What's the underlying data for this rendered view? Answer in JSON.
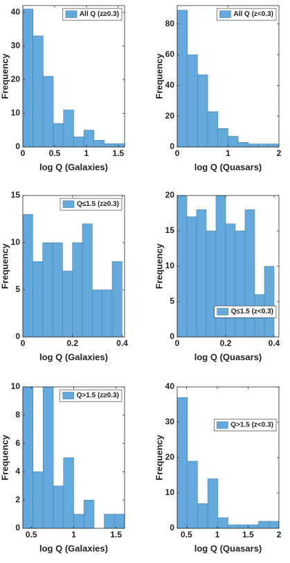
{
  "chart_data": [
    {
      "type": "histogram",
      "xlabel": "log Q (Galaxies)",
      "ylabel": "Frequency",
      "bins": [
        0,
        0.16,
        0.32,
        0.48,
        0.64,
        0.8,
        0.96,
        1.12,
        1.28,
        1.44,
        1.6
      ],
      "series": [
        {
          "name": "All Q (z≥0.3)",
          "color": "#64a9dc",
          "values": [
            41,
            33,
            21,
            7,
            11,
            3,
            5,
            2,
            1,
            1
          ]
        }
      ],
      "xlim": [
        0,
        1.6
      ],
      "xticks": [
        0,
        0.5,
        1,
        1.5
      ],
      "ylim": [
        0,
        42
      ],
      "yticks": [
        0,
        10,
        20,
        30,
        40
      ],
      "legend": "upper right"
    },
    {
      "type": "histogram",
      "xlabel": "log Q (Quasars)",
      "ylabel": "Frequency",
      "bins": [
        0,
        0.2,
        0.4,
        0.6,
        0.8,
        1,
        1.2,
        1.4,
        1.6,
        1.8,
        2
      ],
      "series": [
        {
          "name": "All Q (z<0.3)",
          "color": "#64a9dc",
          "values": [
            89,
            60,
            47,
            23,
            12,
            7,
            3,
            2,
            2,
            2
          ]
        }
      ],
      "xlim": [
        0,
        2
      ],
      "xticks": [
        0,
        1,
        2
      ],
      "ylim": [
        0,
        92
      ],
      "yticks": [
        0,
        20,
        40,
        60,
        80
      ],
      "legend": "upper right"
    },
    {
      "type": "histogram",
      "xlabel": "log Q (Galaxies)",
      "ylabel": "Frequency",
      "bins": [
        0,
        0.04,
        0.08,
        0.12,
        0.16,
        0.2,
        0.24,
        0.28,
        0.32,
        0.36,
        0.4
      ],
      "series": [
        {
          "name": "Q≤1.5 (z≥0.3)",
          "color": "#64a9dc",
          "values": [
            13,
            8,
            10,
            10,
            7,
            10,
            12,
            5,
            5,
            8
          ]
        }
      ],
      "xlim": [
        0,
        0.41
      ],
      "xticks": [
        0,
        0.2,
        0.4
      ],
      "ylim": [
        0,
        15
      ],
      "yticks": [
        0,
        5,
        10,
        15
      ],
      "legend": "upper right"
    },
    {
      "type": "histogram",
      "xlabel": "log Q (Quasars)",
      "ylabel": "Frequency",
      "bins": [
        0,
        0.04,
        0.08,
        0.12,
        0.16,
        0.2,
        0.24,
        0.28,
        0.32,
        0.36,
        0.4
      ],
      "series": [
        {
          "name": "Q≤1.5 (z<0.3)",
          "color": "#64a9dc",
          "values": [
            20,
            17,
            18,
            15,
            20,
            16,
            15,
            18,
            6,
            10
          ]
        }
      ],
      "xlim": [
        0,
        0.42
      ],
      "xticks": [
        0,
        0.2,
        0.4
      ],
      "ylim": [
        0,
        20
      ],
      "yticks": [
        0,
        5,
        10,
        15,
        20
      ],
      "legend": "lower right"
    },
    {
      "type": "histogram",
      "xlabel": "log Q (Galaxies)",
      "ylabel": "Frequency",
      "bins": [
        0.4,
        0.52,
        0.64,
        0.76,
        0.88,
        1,
        1.12,
        1.24,
        1.36,
        1.48,
        1.6
      ],
      "series": [
        {
          "name": "Q>1.5 (z≥0.3)",
          "color": "#64a9dc",
          "values": [
            10,
            4,
            10,
            3,
            5,
            1,
            2,
            0,
            1,
            1
          ]
        }
      ],
      "xlim": [
        0.4,
        1.6
      ],
      "xticks": [
        0.5,
        1,
        1.5
      ],
      "ylim": [
        0,
        10
      ],
      "yticks": [
        0,
        2,
        4,
        6,
        8,
        10
      ],
      "legend": "upper right"
    },
    {
      "type": "histogram",
      "xlabel": "log Q (Quasars)",
      "ylabel": "Frequency",
      "bins": [
        0.35,
        0.515,
        0.68,
        0.845,
        1.01,
        1.175,
        1.34,
        1.505,
        1.67,
        1.835,
        2
      ],
      "series": [
        {
          "name": "Q>1.5 (z<0.3)",
          "color": "#64a9dc",
          "values": [
            37,
            19,
            7,
            14,
            3,
            1,
            1,
            1,
            2,
            2
          ]
        }
      ],
      "xlim": [
        0.35,
        2
      ],
      "xticks": [
        0.5,
        1,
        1.5,
        2
      ],
      "ylim": [
        0,
        40
      ],
      "yticks": [
        0,
        10,
        20,
        30,
        40
      ],
      "legend": "center right"
    }
  ]
}
